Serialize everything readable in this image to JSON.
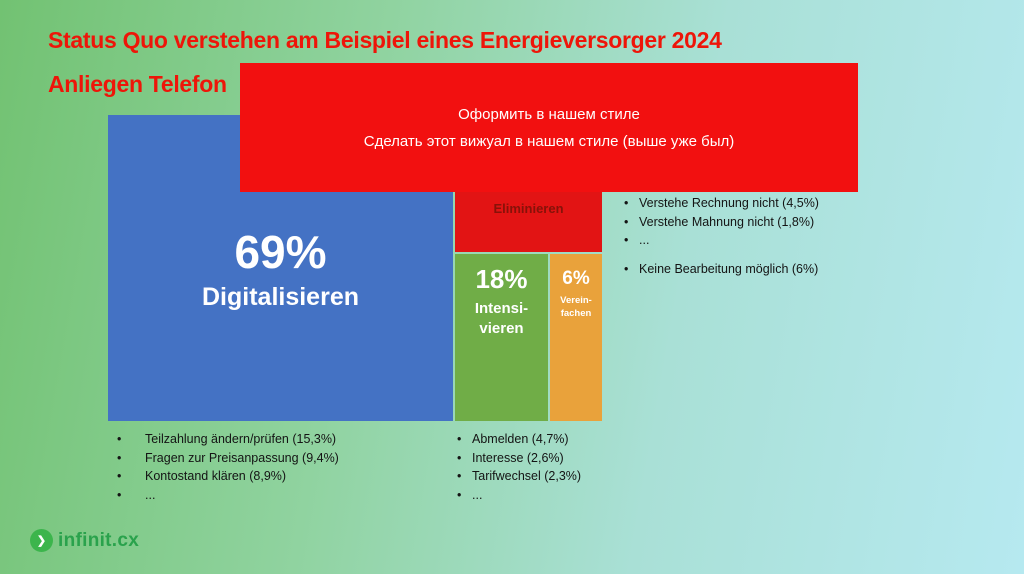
{
  "slide": {
    "title_line1": "Status Quo verstehen am Beispiel eines Energieversorger 2024",
    "title_line2": "Anliegen Telefon",
    "title_color": "#ee1509",
    "background_gradient": [
      "#72c272",
      "#b6e9f0"
    ]
  },
  "overlay_note": {
    "line1": "Оформить в нашем стиле",
    "line2": "Сделать этот вижуал в нашем стиле (выше уже был)",
    "bg_color": "#f21010",
    "text_color": "#ffffff"
  },
  "chart_data": {
    "type": "treemap",
    "title": "Anliegen Telefon",
    "legend_position": "none",
    "segments": [
      {
        "name": "Digitalisieren",
        "pct_label": "69%",
        "value": 69,
        "color": "#4472c4",
        "details": [
          "Teilzahlung ändern/prüfen (15,3%)",
          "Fragen zur Preisanpassung (9,4%)",
          "Kontostand klären (8,9%)",
          "..."
        ]
      },
      {
        "name": "Eliminieren",
        "pct_label": "",
        "value": null,
        "color": "#e21414",
        "details": [
          "Verstehe Rechnung nicht (4,5%)",
          "Verstehe Mahnung nicht (1,8%)",
          "..."
        ],
        "details_extra": [
          "Keine Bearbeitung möglich (6%)"
        ]
      },
      {
        "name": "Intensivieren",
        "name_line1": "Intensi-",
        "name_line2": "vieren",
        "pct_label": "18%",
        "value": 18,
        "color": "#70ad47",
        "details": [
          "Abmelden (4,7%)",
          "Interesse (2,6%)",
          "Tarifwechsel  (2,3%)",
          "..."
        ]
      },
      {
        "name": "Vereinfachen",
        "name_line1": "Verein-",
        "name_line2": "fachen",
        "pct_label": "6%",
        "value": 6,
        "color": "#e9a23b"
      }
    ]
  },
  "bullet_char": "•",
  "logo": {
    "mark_glyph": "❯",
    "text": "infinit.cx",
    "color": "#2aa24c"
  }
}
